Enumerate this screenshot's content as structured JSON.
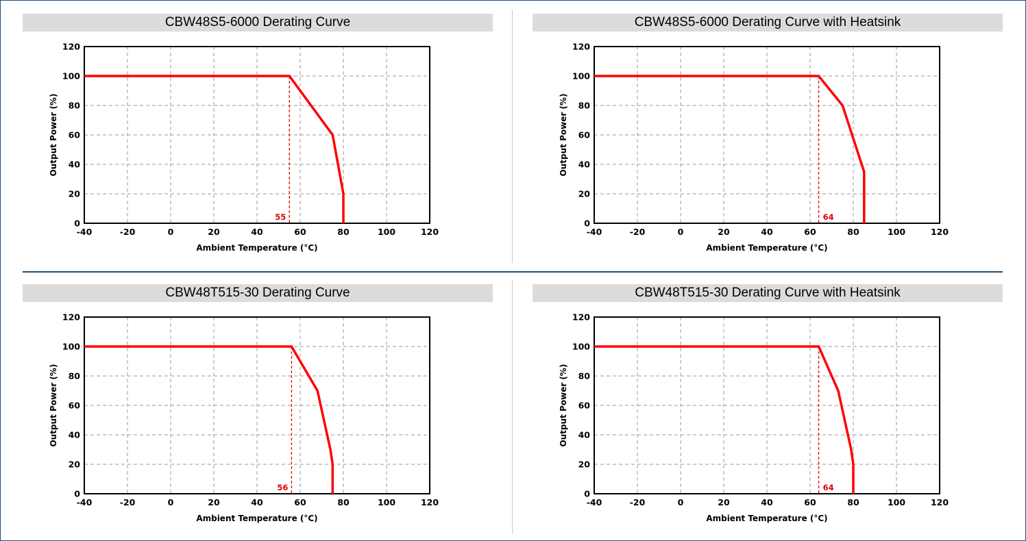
{
  "colors": {
    "curve": "#ff0000",
    "marker": "#e00000",
    "grid": "#9a9a9a",
    "title_bar": "#dcdcdc",
    "border": "#1f4e79"
  },
  "chart_data": [
    {
      "type": "line",
      "title": "CBW48S5-6000 Derating Curve",
      "xlabel": "Ambient Temperature (°C)",
      "ylabel": "Output Power (%)",
      "xlim": [
        -40,
        120
      ],
      "ylim": [
        0,
        120
      ],
      "xticks": [
        -40,
        -20,
        0,
        20,
        40,
        60,
        80,
        100,
        120
      ],
      "yticks": [
        0,
        20,
        40,
        60,
        80,
        100,
        120
      ],
      "grid": true,
      "series": [
        {
          "x": [
            -40,
            55,
            75,
            80,
            80
          ],
          "y": [
            100,
            100,
            60,
            20,
            0
          ]
        }
      ],
      "marker": {
        "x": 55,
        "label": "55"
      }
    },
    {
      "type": "line",
      "title": "CBW48S5-6000 Derating Curve with Heatsink",
      "xlabel": "Ambient Temperature (°C)",
      "ylabel": "Output Power (%)",
      "xlim": [
        -40,
        120
      ],
      "ylim": [
        0,
        120
      ],
      "xticks": [
        -40,
        -20,
        0,
        20,
        40,
        60,
        80,
        100,
        120
      ],
      "yticks": [
        0,
        20,
        40,
        60,
        80,
        100,
        120
      ],
      "grid": true,
      "series": [
        {
          "x": [
            -40,
            64,
            75,
            85,
            85
          ],
          "y": [
            100,
            100,
            80,
            35,
            0
          ]
        }
      ],
      "marker": {
        "x": 64,
        "label": "64"
      }
    },
    {
      "type": "line",
      "title": "CBW48T515-30 Derating Curve",
      "xlabel": "Ambient Temperature (°C)",
      "ylabel": "Output Power (%)",
      "xlim": [
        -40,
        120
      ],
      "ylim": [
        0,
        120
      ],
      "xticks": [
        -40,
        -20,
        0,
        20,
        40,
        60,
        80,
        100,
        120
      ],
      "yticks": [
        0,
        20,
        40,
        60,
        80,
        100,
        120
      ],
      "grid": true,
      "series": [
        {
          "x": [
            -40,
            56,
            68,
            74,
            75,
            75
          ],
          "y": [
            100,
            100,
            70,
            30,
            20,
            0
          ]
        }
      ],
      "marker": {
        "x": 56,
        "label": "56"
      }
    },
    {
      "type": "line",
      "title": "CBW48T515-30 Derating Curve with Heatsink",
      "xlabel": "Ambient Temperature (°C)",
      "ylabel": "Output Power (%)",
      "xlim": [
        -40,
        120
      ],
      "ylim": [
        0,
        120
      ],
      "xticks": [
        -40,
        -20,
        0,
        20,
        40,
        60,
        80,
        100,
        120
      ],
      "yticks": [
        0,
        20,
        40,
        60,
        80,
        100,
        120
      ],
      "grid": true,
      "series": [
        {
          "x": [
            -40,
            64,
            73,
            79,
            80,
            80
          ],
          "y": [
            100,
            100,
            70,
            30,
            20,
            0
          ]
        }
      ],
      "marker": {
        "x": 64,
        "label": "64"
      }
    }
  ]
}
